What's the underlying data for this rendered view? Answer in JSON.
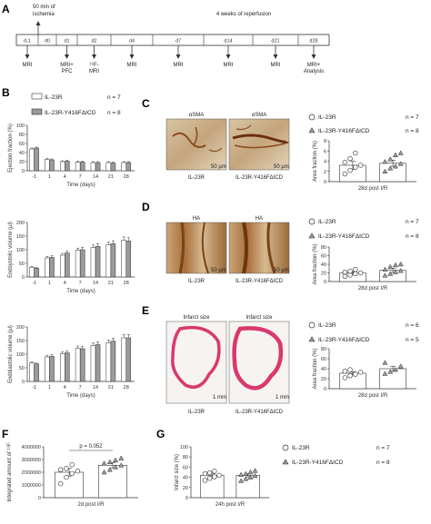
{
  "panel_labels": {
    "A": "A",
    "B": "B",
    "C": "C",
    "D": "D",
    "E": "E",
    "F": "F",
    "G": "G"
  },
  "timeline": {
    "ischemia_label": "50 min of\nischemia",
    "reperfusion_label": "4 weeks of reperfusion",
    "days": [
      "d-1",
      "d0",
      "d1",
      "d2",
      "d4",
      "d7",
      "d14",
      "d21",
      "d28"
    ],
    "events": [
      {
        "day": "d-1",
        "label": "MRI"
      },
      {
        "day": "d1",
        "label": "MRI+\nPFC"
      },
      {
        "day": "d2",
        "label": "¹⁹F-\nMRI"
      },
      {
        "day": "d4",
        "label": "MRI"
      },
      {
        "day": "d7",
        "label": "MRI"
      },
      {
        "day": "d14",
        "label": "MRI"
      },
      {
        "day": "d21",
        "label": "MRI"
      },
      {
        "day": "d28",
        "label": "MRI+\nAnalysis"
      }
    ]
  },
  "legend": {
    "series1": "IL-23R",
    "series2": "IL-23R-Y416FΔICD",
    "B_n1": "n = 7",
    "B_n2": "n = 8",
    "C_n1": "n = 7",
    "C_n2": "n = 8",
    "D_n1": "n = 7",
    "D_n2": "n = 8",
    "E_n1": "n = 6",
    "E_n2": "n = 5",
    "G_n1": "n = 7",
    "G_n2": "n = 8"
  },
  "colors": {
    "series1": "#ffffff",
    "series2": "#9a9a9a",
    "stain_brown": "#9b6a3b",
    "he_pink": "#d9386f"
  },
  "images": {
    "C_left_title": "αSMA",
    "C_right_title": "αSMA",
    "C_left_label": "IL-23R",
    "C_right_label": "IL-23R-Y416FΔICD",
    "C_scale": "50 µm",
    "D_left_title": "HA",
    "D_right_title": "HA",
    "D_left_label": "IL-23R",
    "D_right_label": "IL-23R-Y416FΔICD",
    "D_scale": "50 µm",
    "E_left_title": "Infarct size",
    "E_right_title": "Infarct size",
    "E_left_label": "IL-23R",
    "E_right_label": "IL-23R-Y416FΔICD",
    "E_scale": "1 mm"
  },
  "chart_data": [
    {
      "id": "B1",
      "type": "bar",
      "categories": [
        "-1",
        "1",
        "4",
        "7",
        "14",
        "21",
        "28"
      ],
      "series": [
        {
          "name": "IL-23R",
          "values": [
            48,
            25,
            20,
            19,
            18,
            18,
            18
          ],
          "err": [
            2,
            2,
            2,
            2,
            2,
            2,
            2
          ]
        },
        {
          "name": "IL-23R-Y416FΔICD",
          "values": [
            50,
            24,
            21,
            19,
            18,
            17,
            18
          ],
          "err": [
            2,
            2,
            2,
            2,
            2,
            2,
            2
          ]
        }
      ],
      "xlabel": "Time (days)",
      "ylabel": "Ejection fraction (%)",
      "ylim": [
        0,
        100
      ],
      "yticks": [
        0,
        20,
        40,
        60,
        80,
        100
      ]
    },
    {
      "id": "B2",
      "type": "bar",
      "categories": [
        "-1",
        "1",
        "4",
        "7",
        "14",
        "21",
        "28"
      ],
      "series": [
        {
          "name": "IL-23R",
          "values": [
            36,
            70,
            80,
            98,
            108,
            118,
            135
          ],
          "err": [
            3,
            6,
            7,
            8,
            9,
            10,
            12
          ]
        },
        {
          "name": "IL-23R-Y416FΔICD",
          "values": [
            32,
            72,
            88,
            100,
            112,
            122,
            132
          ],
          "err": [
            3,
            6,
            8,
            9,
            10,
            11,
            12
          ]
        }
      ],
      "xlabel": "Time (days)",
      "ylabel": "Endsystolic volume (µl)",
      "ylim": [
        0,
        200
      ],
      "yticks": [
        0,
        50,
        100,
        150,
        200
      ]
    },
    {
      "id": "B3",
      "type": "bar",
      "categories": [
        "-1",
        "1",
        "4",
        "7",
        "14",
        "21",
        "28"
      ],
      "series": [
        {
          "name": "IL-23R",
          "values": [
            68,
            90,
            102,
            122,
            132,
            142,
            160
          ],
          "err": [
            3,
            6,
            7,
            8,
            9,
            10,
            12
          ]
        },
        {
          "name": "IL-23R-Y416FΔICD",
          "values": [
            64,
            92,
            105,
            120,
            135,
            148,
            160
          ],
          "err": [
            3,
            6,
            8,
            9,
            10,
            11,
            12
          ]
        }
      ],
      "xlabel": "Time (days)",
      "ylabel": "Enddiastolic volume (µl)",
      "ylim": [
        0,
        200
      ],
      "yticks": [
        0,
        50,
        100,
        150,
        200
      ]
    },
    {
      "id": "C",
      "type": "bar",
      "categories": [
        "IL-23R",
        "IL-23R-Y416FΔICD"
      ],
      "values": [
        3.2,
        3.6
      ],
      "err": [
        0.8,
        0.6
      ],
      "points": [
        [
          1.5,
          2.2,
          2.8,
          3.2,
          3.8,
          4.5,
          5.6
        ],
        [
          2.0,
          2.6,
          3.0,
          3.5,
          3.9,
          4.4,
          5.2,
          5.6
        ]
      ],
      "xlabel": "28d post I/R",
      "ylabel": "Area fraction (%)",
      "ylim": [
        0,
        8
      ],
      "yticks": [
        0,
        2,
        4,
        6,
        8
      ]
    },
    {
      "id": "D",
      "type": "bar",
      "categories": [
        "IL-23R",
        "IL-23R-Y416FΔICD"
      ],
      "values": [
        20,
        26
      ],
      "err": [
        3,
        5
      ],
      "points": [
        [
          12,
          15,
          18,
          20,
          22,
          24,
          28
        ],
        [
          14,
          18,
          22,
          25,
          28,
          34,
          38,
          40
        ]
      ],
      "xlabel": "28d post I/R",
      "ylabel": "Area fraction (%)",
      "ylim": [
        0,
        80
      ],
      "yticks": [
        0,
        20,
        40,
        60,
        80
      ]
    },
    {
      "id": "E",
      "type": "bar",
      "categories": [
        "IL-23R",
        "IL-23R-Y416FΔICD"
      ],
      "values": [
        31,
        40
      ],
      "err": [
        3,
        5
      ],
      "points": [
        [
          22,
          26,
          29,
          33,
          35,
          38
        ],
        [
          30,
          34,
          38,
          45,
          52
        ]
      ],
      "xlabel": "28d post I/R",
      "ylabel": "Area fraction (%)",
      "ylim": [
        0,
        80
      ],
      "yticks": [
        0,
        20,
        40,
        60,
        80
      ]
    },
    {
      "id": "F",
      "type": "bar",
      "categories": [
        "IL-23R",
        "IL-23R-Y416FΔICD"
      ],
      "values": [
        2000000,
        2550000
      ],
      "err": [
        300000,
        200000
      ],
      "points": [
        [
          1100000,
          1600000,
          1900000,
          2100000,
          2200000,
          2300000,
          2600000
        ],
        [
          2000000,
          2200000,
          2400000,
          2550000,
          2700000,
          2800000,
          2950000,
          3100000
        ]
      ],
      "annotation": "p = 0.052",
      "xlabel": "2d post I/R",
      "ylabel": "Integrated amount of ¹⁹F",
      "ylim": [
        0,
        4000000
      ],
      "yticklabels": [
        "0",
        "1000000",
        "2000000",
        "3000000",
        "4000000"
      ]
    },
    {
      "id": "G",
      "type": "bar",
      "categories": [
        "IL-23R",
        "IL-23R-Y416FΔICD"
      ],
      "values": [
        44,
        44
      ],
      "err": [
        3,
        3
      ],
      "points": [
        [
          34,
          38,
          41,
          44,
          47,
          49,
          52
        ],
        [
          33,
          37,
          40,
          43,
          45,
          47,
          50,
          53
        ]
      ],
      "xlabel": "24h post I/R",
      "ylabel": "Infarct size (%)",
      "ylim": [
        0,
        100
      ],
      "yticks": [
        0,
        20,
        40,
        60,
        80,
        100
      ]
    }
  ]
}
